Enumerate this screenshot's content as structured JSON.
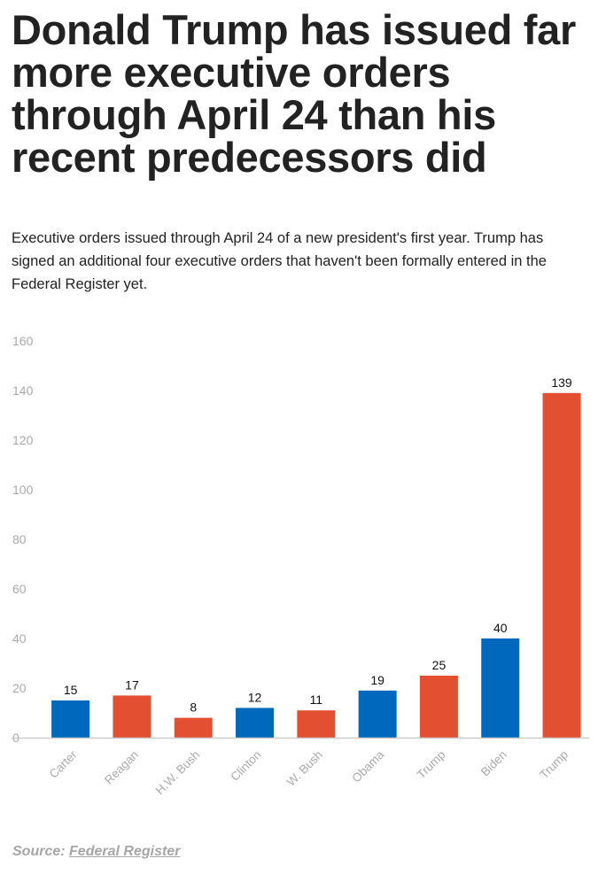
{
  "title": "Donald Trump has issued far more executive orders through April 24 than his recent predecessors did",
  "subtitle": "Executive orders issued through April 24 of a new president's first year. Trump has signed an additional four executive orders that haven't been formally entered in the Federal Register yet.",
  "source": {
    "label": "Source:",
    "link_text": "Federal Register"
  },
  "chart_data": {
    "type": "bar",
    "categories": [
      "Carter",
      "Reagan",
      "H.W. Bush",
      "Clinton",
      "W. Bush",
      "Obama",
      "Trump",
      "Biden",
      "Trump"
    ],
    "values": [
      15,
      17,
      8,
      12,
      11,
      19,
      25,
      40,
      139
    ],
    "party_colors": [
      "#0069bd",
      "#e35031",
      "#e35031",
      "#0069bd",
      "#e35031",
      "#0069bd",
      "#e35031",
      "#0069bd",
      "#e35031"
    ],
    "colors": {
      "democrat": "#0069bd",
      "republican": "#e35031"
    },
    "ylim": [
      0,
      160
    ],
    "yticks": [
      0,
      20,
      40,
      60,
      80,
      100,
      120,
      140,
      160
    ],
    "grid": false,
    "data_labels": true,
    "title": "",
    "xlabel": "",
    "ylabel": ""
  }
}
